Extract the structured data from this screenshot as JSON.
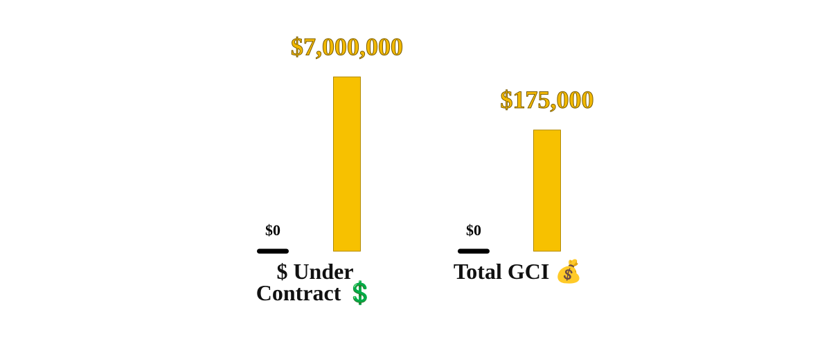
{
  "chart_data": [
    {
      "type": "bar",
      "xlabel": "$ Under Contract 💲",
      "categories": [
        null,
        null
      ],
      "values": [
        0,
        7000000
      ],
      "value_labels": [
        "$0",
        "$7,000,000"
      ],
      "colors": [
        "#000000",
        "#f7c100"
      ],
      "ylim": [
        0,
        8400000
      ]
    },
    {
      "type": "bar",
      "xlabel": "Total GCI 💰",
      "categories": [
        null,
        null
      ],
      "values": [
        0,
        175000
      ],
      "value_labels": [
        "$0",
        "$175,000"
      ],
      "colors": [
        "#000000",
        "#f7c100"
      ],
      "ylim": [
        0,
        300000
      ]
    }
  ]
}
